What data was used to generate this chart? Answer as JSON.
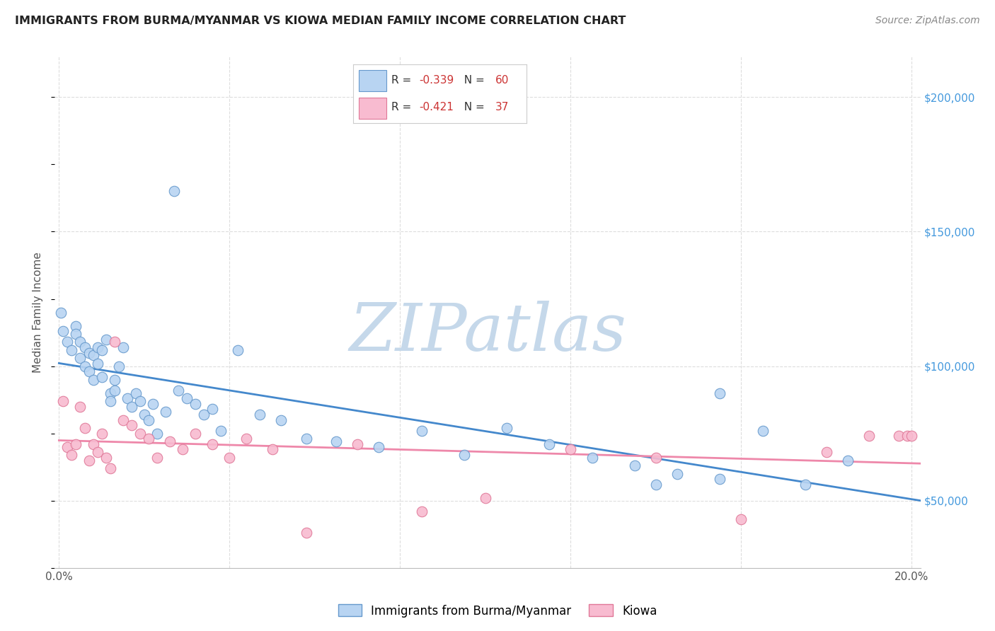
{
  "title": "IMMIGRANTS FROM BURMA/MYANMAR VS KIOWA MEDIAN FAMILY INCOME CORRELATION CHART",
  "source": "Source: ZipAtlas.com",
  "ylabel": "Median Family Income",
  "xlim": [
    -0.001,
    0.202
  ],
  "ylim": [
    25000,
    215000
  ],
  "xticks": [
    0.0,
    0.04,
    0.08,
    0.12,
    0.16,
    0.2
  ],
  "xticklabels": [
    "0.0%",
    "",
    "",
    "",
    "",
    "20.0%"
  ],
  "ytick_vals_right": [
    50000,
    100000,
    150000,
    200000
  ],
  "blue_label": "Immigrants from Burma/Myanmar",
  "pink_label": "Kiowa",
  "blue_R": -0.339,
  "blue_N": 60,
  "pink_R": -0.421,
  "pink_N": 37,
  "blue_color": "#b8d4f2",
  "blue_edge": "#6699cc",
  "pink_color": "#f8bbd0",
  "pink_edge": "#e07898",
  "blue_line_color": "#4488cc",
  "pink_line_color": "#ee88aa",
  "watermark": "ZIPatlas",
  "watermark_color": "#c5d8ea",
  "blue_x": [
    0.0005,
    0.001,
    0.002,
    0.003,
    0.004,
    0.004,
    0.005,
    0.005,
    0.006,
    0.006,
    0.007,
    0.007,
    0.008,
    0.008,
    0.009,
    0.009,
    0.01,
    0.01,
    0.011,
    0.012,
    0.012,
    0.013,
    0.013,
    0.014,
    0.015,
    0.016,
    0.017,
    0.018,
    0.019,
    0.02,
    0.021,
    0.022,
    0.023,
    0.025,
    0.027,
    0.028,
    0.03,
    0.032,
    0.034,
    0.036,
    0.038,
    0.042,
    0.047,
    0.052,
    0.058,
    0.065,
    0.075,
    0.085,
    0.095,
    0.105,
    0.115,
    0.125,
    0.135,
    0.145,
    0.155,
    0.165,
    0.175,
    0.185,
    0.155,
    0.14
  ],
  "blue_y": [
    120000,
    113000,
    109000,
    106000,
    115000,
    112000,
    109000,
    103000,
    107000,
    100000,
    98000,
    105000,
    95000,
    104000,
    101000,
    107000,
    96000,
    106000,
    110000,
    90000,
    87000,
    91000,
    95000,
    100000,
    107000,
    88000,
    85000,
    90000,
    87000,
    82000,
    80000,
    86000,
    75000,
    83000,
    165000,
    91000,
    88000,
    86000,
    82000,
    84000,
    76000,
    106000,
    82000,
    80000,
    73000,
    72000,
    70000,
    76000,
    67000,
    77000,
    71000,
    66000,
    63000,
    60000,
    58000,
    76000,
    56000,
    65000,
    90000,
    56000
  ],
  "pink_x": [
    0.001,
    0.002,
    0.003,
    0.004,
    0.005,
    0.006,
    0.007,
    0.008,
    0.009,
    0.01,
    0.011,
    0.012,
    0.013,
    0.015,
    0.017,
    0.019,
    0.021,
    0.023,
    0.026,
    0.029,
    0.032,
    0.036,
    0.04,
    0.044,
    0.05,
    0.058,
    0.07,
    0.085,
    0.1,
    0.12,
    0.14,
    0.16,
    0.18,
    0.19,
    0.197,
    0.199,
    0.2
  ],
  "pink_y": [
    87000,
    70000,
    67000,
    71000,
    85000,
    77000,
    65000,
    71000,
    68000,
    75000,
    66000,
    62000,
    109000,
    80000,
    78000,
    75000,
    73000,
    66000,
    72000,
    69000,
    75000,
    71000,
    66000,
    73000,
    69000,
    38000,
    71000,
    46000,
    51000,
    69000,
    66000,
    43000,
    68000,
    74000,
    74000,
    74000,
    74000
  ]
}
